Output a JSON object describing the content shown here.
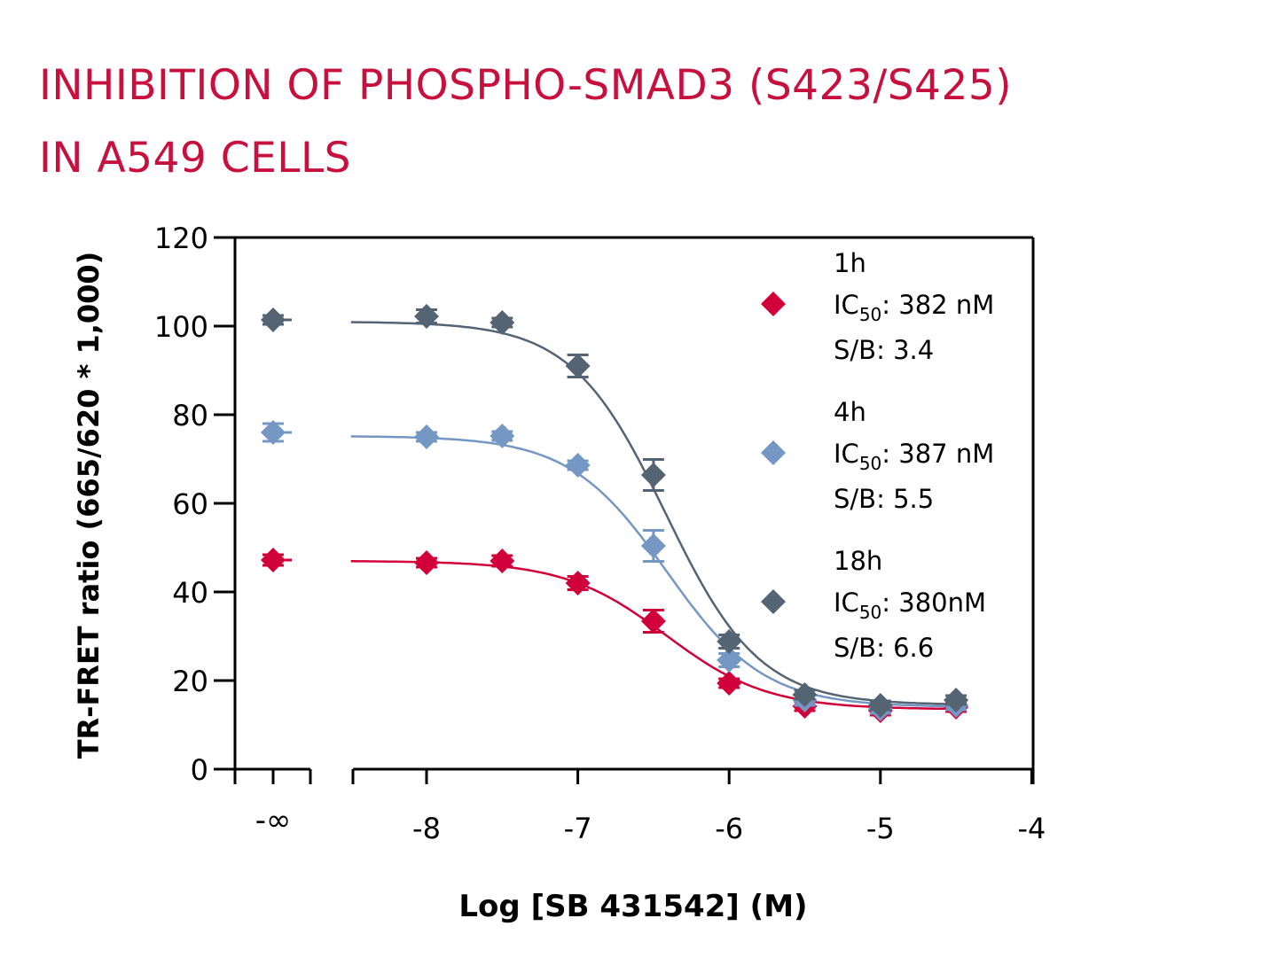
{
  "title_lines": [
    "INHIBITION OF PHOSPHO-SMAD3 (S423/S425)",
    "IN A549 CELLS"
  ],
  "chart_data": {
    "type": "scatter",
    "title": "INHIBITION OF PHOSPHO-SMAD3 (S423/S425) IN A549 CELLS",
    "xlabel": "Log [SB 431542] (M)",
    "ylabel": "TR-FRET ratio (665/620 * 1,000)",
    "xlim": [
      -8.5,
      -4
    ],
    "ylim": [
      0,
      120
    ],
    "x_ticks": [
      "-8",
      "-7",
      "-6",
      "-5",
      "-4"
    ],
    "x_tick_values": [
      -8,
      -7,
      -6,
      -5,
      -4
    ],
    "x_break_label": "-∞",
    "y_ticks": [
      "0",
      "20",
      "40",
      "60",
      "80",
      "100",
      "120"
    ],
    "y_tick_values": [
      0,
      20,
      40,
      60,
      80,
      100,
      120
    ],
    "grid": false,
    "legend_position": "top-right",
    "x": [
      "-inf",
      -8,
      -7.5,
      -7,
      -6.5,
      -6,
      -5.5,
      -5,
      -4.5
    ],
    "series": [
      {
        "name": "1h",
        "ic50_label": "IC",
        "ic50_sub": "50",
        "ic50_value": ": 382 nM",
        "sb": "S/B: 3.4",
        "color": "#d1003a",
        "values": [
          47.2,
          46.6,
          47.0,
          42.0,
          33.4,
          19.4,
          14.2,
          13.2,
          14.0
        ],
        "errors": [
          1.2,
          1.0,
          1.2,
          1.5,
          2.5,
          1.0,
          1.0,
          1.0,
          1.0
        ],
        "fit": {
          "top": 47,
          "bottom": 13.5,
          "log_ic50": -6.418,
          "hill": 1.3
        }
      },
      {
        "name": "4h",
        "ic50_label": "IC",
        "ic50_sub": "50",
        "ic50_value": ": 387 nM",
        "sb": "S/B: 5.5",
        "color": "#7597c4",
        "values": [
          76.0,
          75.0,
          75.2,
          68.6,
          50.4,
          24.6,
          15.6,
          13.6,
          14.4
        ],
        "errors": [
          2.0,
          1.0,
          1.0,
          1.0,
          3.5,
          1.5,
          1.2,
          1.0,
          1.0
        ],
        "fit": {
          "top": 75.2,
          "bottom": 14,
          "log_ic50": -6.412,
          "hill": 1.35
        }
      },
      {
        "name": "18h",
        "ic50_label": "IC",
        "ic50_sub": "50",
        "ic50_value": ": 380nM",
        "sb": "S/B: 6.6",
        "color": "#546473",
        "values": [
          101.4,
          102.2,
          100.8,
          91.0,
          66.4,
          28.8,
          16.8,
          14.4,
          15.6
        ],
        "errors": [
          1.0,
          1.5,
          1.0,
          2.5,
          3.5,
          1.5,
          1.0,
          1.0,
          1.0
        ],
        "fit": {
          "top": 101,
          "bottom": 14.5,
          "log_ic50": -6.42,
          "hill": 1.4
        }
      }
    ]
  }
}
